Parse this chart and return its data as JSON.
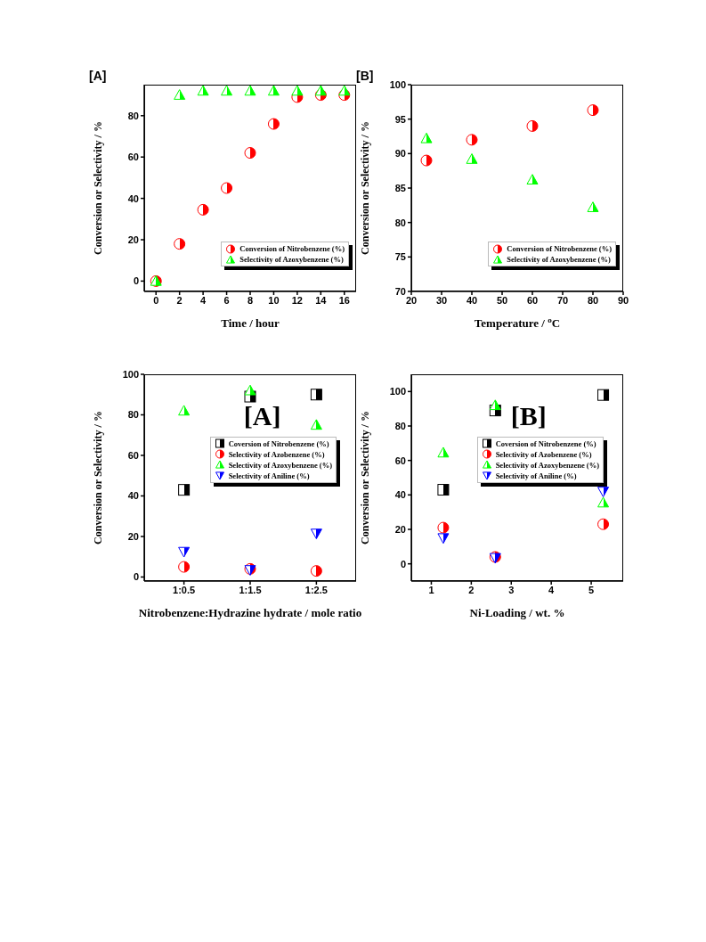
{
  "chart_data": [
    {
      "type": "scatter",
      "title": "[A]",
      "xlabel": "Time / hour",
      "ylabel": "Conversion or Selectivity / %",
      "x": [
        0,
        2,
        4,
        6,
        8,
        10,
        12,
        14,
        16
      ],
      "xlim": [
        -1,
        17
      ],
      "xticks": [
        0,
        2,
        4,
        6,
        8,
        10,
        12,
        14,
        16
      ],
      "ylim": [
        -5,
        95
      ],
      "yticks": [
        0,
        20,
        40,
        60,
        80
      ],
      "legend": "bottom right",
      "series": [
        {
          "name": "Conversion of Nitrobenzene (%)",
          "color": "#ff0000",
          "marker": "circle",
          "values": [
            0,
            18,
            34.5,
            45,
            62,
            76,
            89,
            90,
            90
          ]
        },
        {
          "name": "Selectivity of Azoxybenzene (%)",
          "color": "#00ff00",
          "marker": "triangle",
          "values": [
            0,
            90,
            92,
            92,
            92,
            92,
            92,
            92,
            92
          ]
        }
      ]
    },
    {
      "type": "scatter",
      "title": "[B]",
      "xlabel": "Temperature / $^{o}$C",
      "ylabel": "Conversion or Selectivity / %",
      "x": [
        25,
        40,
        60,
        80
      ],
      "xlim": [
        20,
        90
      ],
      "xticks": [
        20,
        30,
        40,
        50,
        60,
        70,
        80,
        90
      ],
      "ylim": [
        70,
        100
      ],
      "yticks": [
        70,
        75,
        80,
        85,
        90,
        95,
        100
      ],
      "legend": "bottom right",
      "series": [
        {
          "name": "Conversion of Nitrobenzene (%)",
          "color": "#ff0000",
          "marker": "circle",
          "values": [
            89,
            92,
            94,
            96.3
          ]
        },
        {
          "name": "Selectivity of Azoxybenzene (%)",
          "color": "#00ff00",
          "marker": "triangle",
          "values": [
            92.2,
            89.2,
            86.2,
            82.2
          ]
        }
      ]
    },
    {
      "type": "scatter",
      "title": "[A]",
      "xlabel": "Nitrobenzene:Hydrazine hydrate / mole ratio",
      "ylabel": "Conversion or Selectivity / %",
      "categories": [
        "1:0.5",
        "1:1.5",
        "1:2.5"
      ],
      "ylim": [
        -2,
        100
      ],
      "yticks": [
        0,
        20,
        40,
        60,
        80,
        100
      ],
      "legend": "right",
      "series": [
        {
          "name": "Coversion of Nitrobenzene (%)",
          "color": "#000000",
          "marker": "square",
          "values": [
            43,
            89,
            90
          ]
        },
        {
          "name": "Selectivity of Azobenzene (%)",
          "color": "#ff0000",
          "marker": "circle",
          "values": [
            5,
            4,
            3
          ]
        },
        {
          "name": "Selectivity of Azoxybenzene (%)",
          "color": "#00ff00",
          "marker": "triangle",
          "values": [
            82,
            92,
            75
          ]
        },
        {
          "name": "Selectivity of Aniline (%)",
          "color": "#0000ff",
          "marker": "triangle-down",
          "values": [
            12.5,
            3.5,
            21.5
          ]
        }
      ]
    },
    {
      "type": "scatter",
      "title": "[B]",
      "xlabel": "Ni-Loading / wt. %",
      "ylabel": "Conversion or Selectivity / %",
      "x": [
        1.3,
        2.6,
        5.3
      ],
      "xlim": [
        0.5,
        5.8
      ],
      "xticks": [
        1,
        2,
        3,
        4,
        5
      ],
      "ylim": [
        -10,
        110
      ],
      "yticks": [
        0,
        20,
        40,
        60,
        80,
        100
      ],
      "legend": "right",
      "series": [
        {
          "name": "Coversion of Nitrobenzene (%)",
          "color": "#000000",
          "marker": "square",
          "values": [
            43,
            89,
            98
          ]
        },
        {
          "name": "Selectivity of Azobenzene (%)",
          "color": "#ff0000",
          "marker": "circle",
          "values": [
            21,
            4,
            23
          ]
        },
        {
          "name": "Selectivity of Azoxybenzene (%)",
          "color": "#00ff00",
          "marker": "triangle",
          "values": [
            64.5,
            92,
            35.5
          ]
        },
        {
          "name": "Selectivity of Aniline (%)",
          "color": "#0000ff",
          "marker": "triangle-down",
          "values": [
            15,
            3.5,
            42
          ]
        }
      ]
    }
  ]
}
